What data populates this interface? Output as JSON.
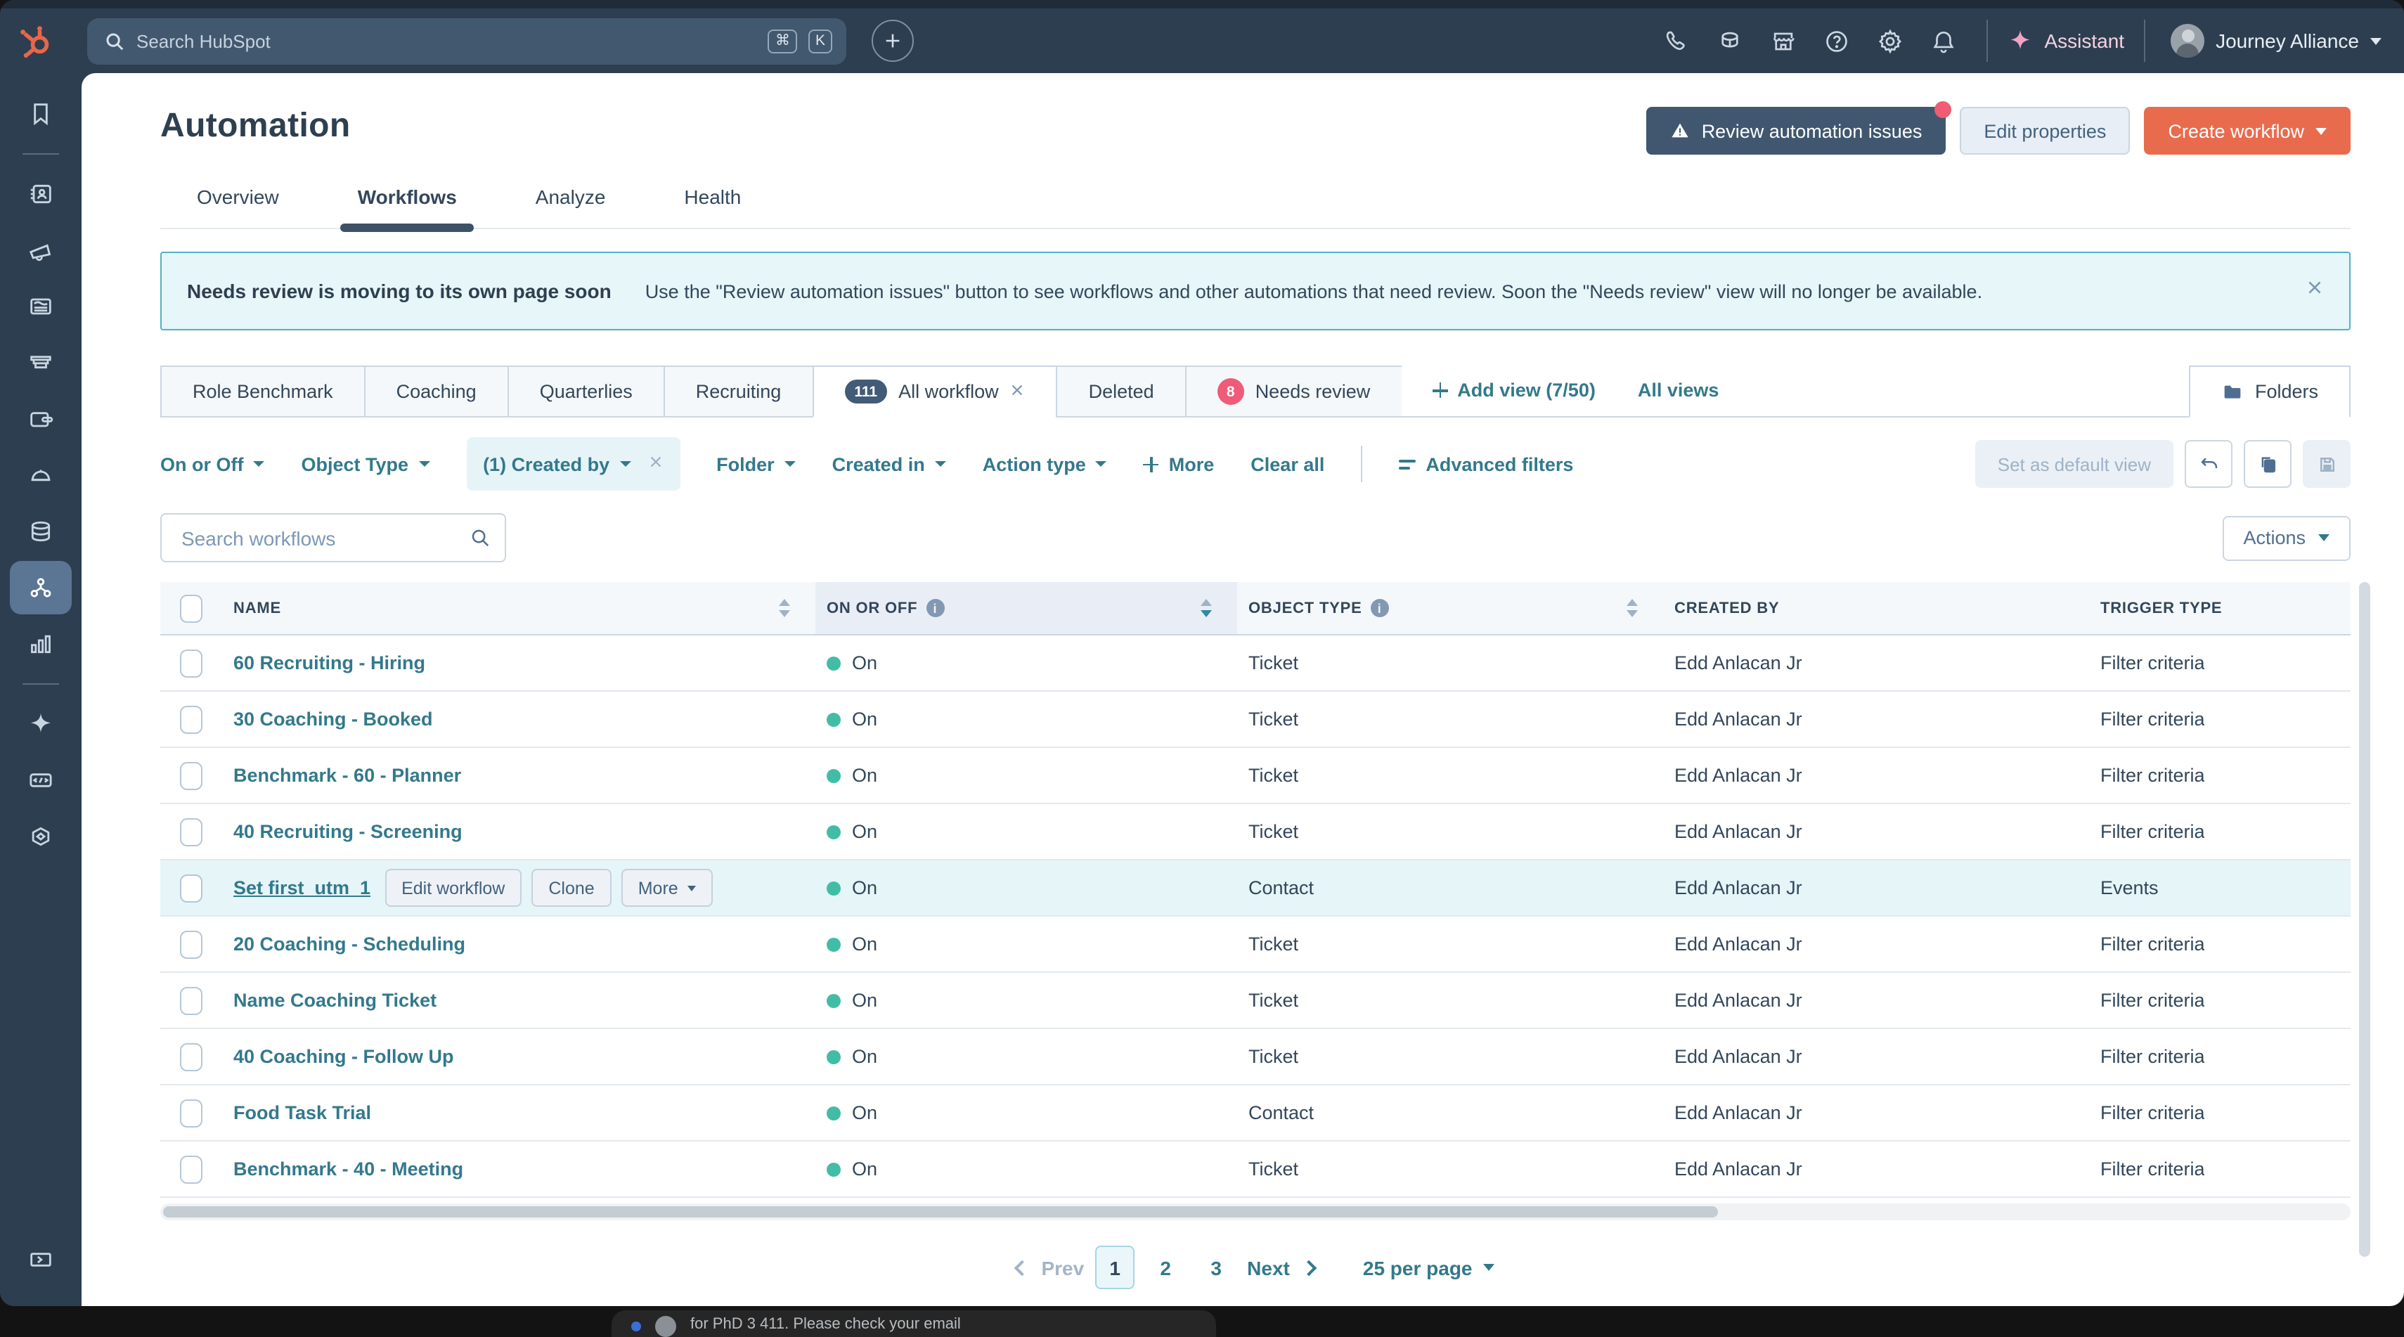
{
  "topbar": {
    "search_placeholder": "Search HubSpot",
    "shortcut_1": "⌘",
    "shortcut_2": "K",
    "assistant_label": "Assistant",
    "account_name": "Journey Alliance",
    "icons": [
      "phone-icon",
      "academy-icon",
      "marketplace-icon",
      "help-icon",
      "settings-icon",
      "notifications-icon",
      "add-icon"
    ]
  },
  "sidebar": {
    "icons": [
      "bookmarks-icon",
      "crm-contacts-icon",
      "marketing-icon",
      "content-icon",
      "sales-icon",
      "commerce-icon",
      "service-icon",
      "data-icon",
      "automation-icon",
      "reporting-icon",
      "breeze-icon",
      "developer-icon",
      "ops-icon",
      "expand-icon"
    ],
    "active_item": "automation-icon"
  },
  "page": {
    "title": "Automation",
    "tabs": [
      {
        "label": "Overview",
        "active": false
      },
      {
        "label": "Workflows",
        "active": true
      },
      {
        "label": "Analyze",
        "active": false
      },
      {
        "label": "Health",
        "active": false
      }
    ],
    "review_button": "Review automation issues",
    "edit_button": "Edit properties",
    "create_button": "Create workflow"
  },
  "banner": {
    "title": "Needs review is moving to its own page soon",
    "message": "Use the \"Review automation issues\" button to see workflows and other automations that need review. Soon the \"Needs review\" view will no longer be available."
  },
  "views": {
    "tabs": [
      {
        "label": "Role Benchmark"
      },
      {
        "label": "Coaching"
      },
      {
        "label": "Quarterlies"
      },
      {
        "label": "Recruiting"
      },
      {
        "label": "All workflow",
        "badge": "111",
        "closable": true,
        "active": true
      },
      {
        "label": "Deleted"
      },
      {
        "label": "Needs review",
        "badge": "8"
      }
    ],
    "add_view": "Add view (7/50)",
    "all_views": "All views",
    "folders": "Folders"
  },
  "filters": {
    "items": [
      {
        "label": "On or Off"
      },
      {
        "label": "Object Type"
      },
      {
        "label": "(1) Created by",
        "active": true,
        "closable": true
      },
      {
        "label": "Folder"
      },
      {
        "label": "Created in"
      },
      {
        "label": "Action type"
      }
    ],
    "more": "More",
    "clear_all": "Clear all",
    "advanced": "Advanced filters",
    "set_default": "Set as default view"
  },
  "search": {
    "placeholder": "Search workflows"
  },
  "table": {
    "actions_label": "Actions",
    "columns": [
      "NAME",
      "ON OR OFF",
      "OBJECT TYPE",
      "CREATED BY",
      "TRIGGER TYPE"
    ],
    "rows": [
      {
        "name": "60 Recruiting - Hiring",
        "status": "On",
        "object": "Ticket",
        "created_by": "Edd Anlacan Jr",
        "trigger": "Filter criteria"
      },
      {
        "name": "30 Coaching - Booked",
        "status": "On",
        "object": "Ticket",
        "created_by": "Edd Anlacan Jr",
        "trigger": "Filter criteria"
      },
      {
        "name": "Benchmark - 60 - Planner",
        "status": "On",
        "object": "Ticket",
        "created_by": "Edd Anlacan Jr",
        "trigger": "Filter criteria"
      },
      {
        "name": "40 Recruiting - Screening",
        "status": "On",
        "object": "Ticket",
        "created_by": "Edd Anlacan Jr",
        "trigger": "Filter criteria"
      },
      {
        "name": "Set first_utm_1",
        "status": "On",
        "object": "Contact",
        "created_by": "Edd Anlacan Jr",
        "trigger": "Events",
        "highlighted": true,
        "actions": [
          "Edit workflow",
          "Clone",
          "More"
        ]
      },
      {
        "name": "20 Coaching - Scheduling",
        "status": "On",
        "object": "Ticket",
        "created_by": "Edd Anlacan Jr",
        "trigger": "Filter criteria"
      },
      {
        "name": "Name Coaching Ticket",
        "status": "On",
        "object": "Ticket",
        "created_by": "Edd Anlacan Jr",
        "trigger": "Filter criteria"
      },
      {
        "name": "40 Coaching - Follow Up",
        "status": "On",
        "object": "Ticket",
        "created_by": "Edd Anlacan Jr",
        "trigger": "Filter criteria"
      },
      {
        "name": "Food Task Trial",
        "status": "On",
        "object": "Contact",
        "created_by": "Edd Anlacan Jr",
        "trigger": "Filter criteria"
      },
      {
        "name": "Benchmark - 40 - Meeting",
        "status": "On",
        "object": "Ticket",
        "created_by": "Edd Anlacan Jr",
        "trigger": "Filter criteria"
      }
    ]
  },
  "pagination": {
    "prev": "Prev",
    "pages": [
      "1",
      "2",
      "3"
    ],
    "active_page": "1",
    "next": "Next",
    "per_page": "25 per page"
  },
  "background_window": {
    "text": "for PhD 3 411. Please check your email"
  },
  "colors": {
    "navy": "#2d3e50",
    "teal_link": "#33798c",
    "orange": "#e96b4d",
    "green_status": "#42bda5",
    "pink_badge": "#ef5b78",
    "banner_bg": "#e6f6f9",
    "highlight_row": "#e5f5f8"
  }
}
